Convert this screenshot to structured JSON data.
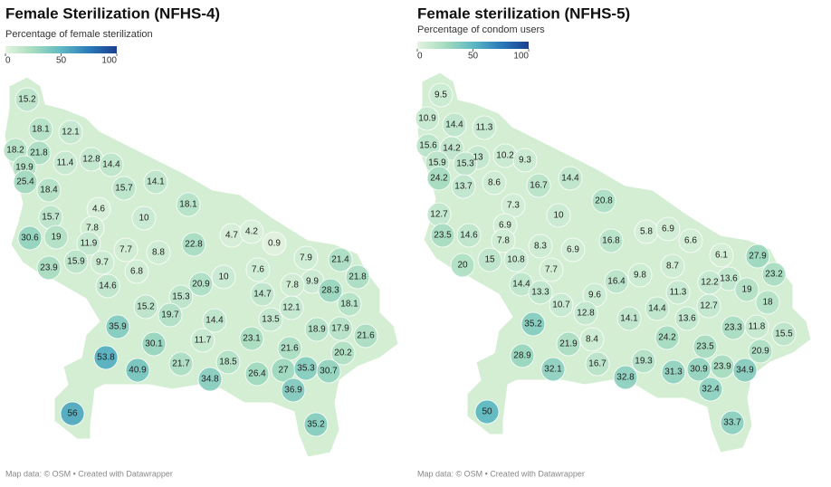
{
  "chart_data": [
    {
      "type": "map",
      "title": "Female Sterilization (NFHS-4)",
      "subtitle": "Percentage of female sterilization",
      "colorbar": {
        "lim": [
          0,
          100
        ],
        "ticks": [
          0,
          50,
          100
        ],
        "colors": [
          "#e3f4df",
          "#a5dcc0",
          "#5fb9c2",
          "#2b7bba",
          "#1a3f8f"
        ]
      },
      "values": [
        15.2,
        18.1,
        12.1,
        18.2,
        21.8,
        19.9,
        11.4,
        12.8,
        14.4,
        25.4,
        18.4,
        15.7,
        14.1,
        4.6,
        18.1,
        15.7,
        10,
        7.8,
        4.7,
        4.2,
        30.6,
        19,
        11.9,
        0.9,
        7.7,
        8.8,
        22.8,
        15.9,
        9.7,
        7.9,
        21.4,
        23.9,
        6.8,
        7.6,
        10,
        21.8,
        14.6,
        20.9,
        9.9,
        28.3,
        15.3,
        14.7,
        7.8,
        18.1,
        15.2,
        12.1,
        19.7,
        14.4,
        13.5,
        35.9,
        17.9,
        18.9,
        30.1,
        11.7,
        23.1,
        21.6,
        21.6,
        20.2,
        53.8,
        18.5,
        21.7,
        40.9,
        27,
        35.3,
        30.7,
        26.4,
        34.8,
        36.9,
        56,
        35.2
      ],
      "source": "Map data: © OSM  • Created with Datawrapper"
    },
    {
      "type": "map",
      "title": "Female sterilization (NFHS-5)",
      "subtitle": "Percentage of condom users",
      "colorbar": {
        "lim": [
          0,
          100
        ],
        "ticks": [
          0,
          50,
          100
        ],
        "colors": [
          "#e3f4df",
          "#a5dcc0",
          "#5fb9c2",
          "#2b7bba",
          "#1a3f8f"
        ]
      },
      "values": [
        9.5,
        10.9,
        14.4,
        11.3,
        15.6,
        14.2,
        13,
        10.2,
        9.3,
        15.9,
        15.3,
        14.4,
        24.2,
        13.7,
        8.6,
        16.7,
        20.8,
        7.3,
        10,
        12.7,
        6.9,
        5.8,
        6.9,
        23.5,
        14.6,
        7.8,
        16.8,
        6.6,
        8.3,
        6.9,
        6.1,
        27.9,
        20,
        15,
        10.8,
        8.7,
        7.7,
        23.2,
        16.4,
        9.8,
        13.6,
        12.2,
        14.4,
        19,
        13.3,
        11.3,
        9.6,
        18,
        10.7,
        12.7,
        14.4,
        12.8,
        14.1,
        13.6,
        35.2,
        23.3,
        11.8,
        15.5,
        21.9,
        8.4,
        24.2,
        23.5,
        20.9,
        28.9,
        16.7,
        19.3,
        23.9,
        34.9,
        32.1,
        32.8,
        31.3,
        30.9,
        32.4,
        50,
        33.7
      ],
      "source": "Map data: © OSM  • Created with Datawrapper"
    }
  ]
}
